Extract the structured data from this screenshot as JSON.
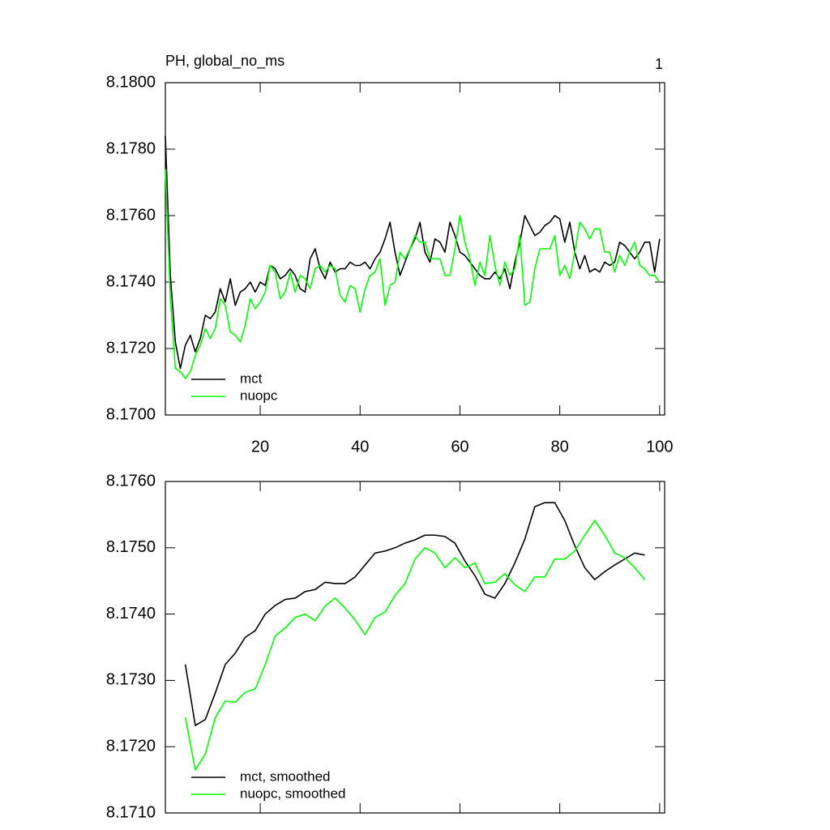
{
  "chart_data": [
    {
      "type": "line",
      "title": "PH, global_no_ms",
      "panel_label": "1",
      "x": [
        1,
        2,
        3,
        4,
        5,
        6,
        7,
        8,
        9,
        10,
        11,
        12,
        13,
        14,
        15,
        16,
        17,
        18,
        19,
        20,
        21,
        22,
        23,
        24,
        25,
        26,
        27,
        28,
        29,
        30,
        31,
        32,
        33,
        34,
        35,
        36,
        37,
        38,
        39,
        40,
        41,
        42,
        43,
        44,
        45,
        46,
        47,
        48,
        49,
        50,
        51,
        52,
        53,
        54,
        55,
        56,
        57,
        58,
        59,
        60,
        61,
        62,
        63,
        64,
        65,
        66,
        67,
        68,
        69,
        70,
        71,
        72,
        73,
        74,
        75,
        76,
        77,
        78,
        79,
        80,
        81,
        82,
        83,
        84,
        85,
        86,
        87,
        88,
        89,
        90,
        91,
        92,
        93,
        94,
        95,
        96,
        97,
        98,
        99,
        100
      ],
      "xlim": [
        1,
        101
      ],
      "xticks": [
        20,
        40,
        60,
        80,
        100
      ],
      "xtick_labels": true,
      "ylim": [
        8.17,
        8.18
      ],
      "yticks": [
        {
          "value": 8.17,
          "label": "8.1700"
        },
        {
          "value": 8.172,
          "label": "8.1720"
        },
        {
          "value": 8.174,
          "label": "8.1740"
        },
        {
          "value": 8.176,
          "label": "8.1760"
        },
        {
          "value": 8.178,
          "label": "8.1780"
        },
        {
          "value": 8.18,
          "label": "8.1800"
        }
      ],
      "legend": "lower left",
      "series": [
        {
          "name": "mct",
          "color": "#000000",
          "values": [
            8.1784,
            8.1742,
            8.1722,
            8.1714,
            8.1721,
            8.1724,
            8.1719,
            8.1723,
            8.173,
            8.1729,
            8.1731,
            8.1738,
            8.1734,
            8.1741,
            8.1733,
            8.1737,
            8.1738,
            8.174,
            8.1737,
            8.174,
            8.1739,
            8.1745,
            8.1744,
            8.1741,
            8.1742,
            8.1744,
            8.1742,
            8.1738,
            8.1737,
            8.1747,
            8.175,
            8.1744,
            8.1741,
            8.1746,
            8.1743,
            8.1744,
            8.1744,
            8.1746,
            8.1745,
            8.1745,
            8.1746,
            8.1744,
            8.1747,
            8.1749,
            8.1753,
            8.1758,
            8.1749,
            8.1742,
            8.1746,
            8.175,
            8.1753,
            8.1758,
            8.1749,
            8.1746,
            8.1753,
            8.1752,
            8.1749,
            8.1758,
            8.1754,
            8.1749,
            8.1748,
            8.1746,
            8.1744,
            8.1742,
            8.1741,
            8.1741,
            8.1743,
            8.1741,
            8.1744,
            8.1738,
            8.1746,
            8.1752,
            8.176,
            8.1757,
            8.1754,
            8.1755,
            8.1757,
            8.1758,
            8.176,
            8.1759,
            8.1752,
            8.1758,
            8.1749,
            8.1744,
            8.1748,
            8.1743,
            8.1744,
            8.1743,
            8.1746,
            8.1745,
            8.1746,
            8.1752,
            8.1751,
            8.1749,
            8.1747,
            8.1749,
            8.1752,
            8.1752,
            8.1743,
            8.1753
          ]
        },
        {
          "name": "nuopc",
          "color": "#00ff00",
          "values": [
            8.1774,
            8.1735,
            8.1714,
            8.1713,
            8.1711,
            8.1713,
            8.1718,
            8.1721,
            8.1726,
            8.1723,
            8.1726,
            8.1735,
            8.1733,
            8.1725,
            8.1724,
            8.1722,
            8.1727,
            8.1735,
            8.1732,
            8.1734,
            8.1737,
            8.1745,
            8.1743,
            8.1735,
            8.1737,
            8.1743,
            8.1737,
            8.1742,
            8.1741,
            8.1738,
            8.1744,
            8.1745,
            8.1743,
            8.1745,
            8.1744,
            8.1736,
            8.1734,
            8.1739,
            8.1738,
            8.1731,
            8.1738,
            8.1742,
            8.1743,
            8.1747,
            8.1733,
            8.1739,
            8.174,
            8.1749,
            8.1747,
            8.175,
            8.1754,
            8.1752,
            8.1752,
            8.1747,
            8.1747,
            8.1747,
            8.1742,
            8.1742,
            8.175,
            8.176,
            8.1752,
            8.1747,
            8.1739,
            8.1746,
            8.1742,
            8.1754,
            8.1745,
            8.1739,
            8.1746,
            8.1742,
            8.1744,
            8.1754,
            8.1733,
            8.1734,
            8.1744,
            8.175,
            8.175,
            8.175,
            8.1754,
            8.1742,
            8.1745,
            8.1741,
            8.1749,
            8.1758,
            8.1756,
            8.1753,
            8.1756,
            8.1756,
            8.1749,
            8.1749,
            8.1743,
            8.1748,
            8.1745,
            8.1749,
            8.1752,
            8.1745,
            8.1744,
            8.1742,
            8.1742,
            8.174
          ]
        }
      ]
    },
    {
      "type": "line",
      "x": [
        5,
        7,
        9,
        11,
        13,
        15,
        17,
        19,
        21,
        23,
        25,
        27,
        29,
        31,
        33,
        35,
        37,
        39,
        41,
        43,
        45,
        47,
        49,
        51,
        53,
        55,
        57,
        59,
        61,
        63,
        65,
        67,
        69,
        71,
        73,
        75,
        77,
        79,
        81,
        83,
        85,
        87,
        89,
        91,
        93,
        95,
        97
      ],
      "xlim": [
        1,
        101
      ],
      "xticks": [
        20,
        40,
        60,
        80,
        100
      ],
      "xtick_labels": false,
      "ylim": [
        8.171,
        8.176
      ],
      "yticks": [
        {
          "value": 8.171,
          "label": "8.1710"
        },
        {
          "value": 8.172,
          "label": "8.1720"
        },
        {
          "value": 8.173,
          "label": "8.1730"
        },
        {
          "value": 8.174,
          "label": "8.1740"
        },
        {
          "value": 8.175,
          "label": "8.1750"
        },
        {
          "value": 8.176,
          "label": "8.1760"
        }
      ],
      "legend": "lower left",
      "series": [
        {
          "name": "mct, smoothed",
          "color": "#000000",
          "values": [
            8.17324,
            8.17232,
            8.17241,
            8.17281,
            8.17324,
            8.17341,
            8.17365,
            8.17375,
            8.174,
            8.17413,
            8.17422,
            8.17424,
            8.17434,
            8.17437,
            8.17448,
            8.17446,
            8.17446,
            8.17456,
            8.17474,
            8.17492,
            8.17495,
            8.175,
            8.17507,
            8.17512,
            8.17519,
            8.17519,
            8.17517,
            8.17507,
            8.1748,
            8.17458,
            8.1743,
            8.17424,
            8.17446,
            8.17477,
            8.17513,
            8.17562,
            8.17568,
            8.17568,
            8.17541,
            8.17503,
            8.1747,
            8.17452,
            8.17464,
            8.17474,
            8.17483,
            8.17492,
            8.17489
          ]
        },
        {
          "name": "nuopc, smoothed",
          "color": "#00ff00",
          "values": [
            8.17244,
            8.17165,
            8.17189,
            8.17244,
            8.17269,
            8.17267,
            8.17282,
            8.17287,
            8.17324,
            8.17367,
            8.17379,
            8.17395,
            8.174,
            8.1739,
            8.17412,
            8.17424,
            8.17409,
            8.17391,
            8.17369,
            8.17395,
            8.17403,
            8.17428,
            8.17446,
            8.17483,
            8.175,
            8.17492,
            8.1747,
            8.17485,
            8.1747,
            8.17477,
            8.17446,
            8.17448,
            8.17461,
            8.17444,
            8.17434,
            8.17456,
            8.17456,
            8.17483,
            8.17483,
            8.17495,
            8.17519,
            8.17541,
            8.17519,
            8.17492,
            8.17485,
            8.1747,
            8.17452
          ]
        }
      ]
    }
  ]
}
